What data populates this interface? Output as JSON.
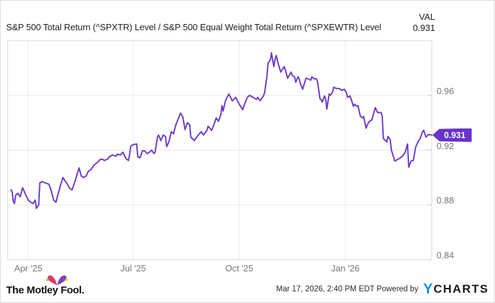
{
  "header": {
    "title": "S&P 500 Total Return (^SPXTR) Level / S&P 500 Equal Weight Total Return (^SPXEWTR) Level",
    "val_label": "VAL",
    "val_value": "0.931"
  },
  "chart_data": {
    "type": "line",
    "title": "S&P 500 Total Return (^SPXTR) Level / S&P 500 Equal Weight Total Return (^SPXEWTR) Level",
    "grid": true,
    "legend_position": "none",
    "y_axis_side": "right",
    "y_range": [
      0.84,
      1.0
    ],
    "y_ticks": [
      "0.96",
      "0.92",
      "0.88",
      "0.84"
    ],
    "x_range": [
      "2025-03-14",
      "2026-03-17"
    ],
    "x_ticks": [
      {
        "date": "2025-04-01",
        "label": "Apr '25"
      },
      {
        "date": "2025-07-01",
        "label": "Jul '25"
      },
      {
        "date": "2025-10-01",
        "label": "Oct '25"
      },
      {
        "date": "2026-01-01",
        "label": "Jan '26"
      }
    ],
    "last_value_label": "0.931",
    "series": [
      {
        "name": "^SPXTR / ^SPXEWTR ratio",
        "color": "#6d3bc7",
        "points": [
          [
            "2025-03-17",
            0.891
          ],
          [
            "2025-03-18",
            0.8895
          ],
          [
            "2025-03-19",
            0.8825
          ],
          [
            "2025-03-20",
            0.881
          ],
          [
            "2025-03-21",
            0.887
          ],
          [
            "2025-03-23",
            0.8885
          ],
          [
            "2025-03-25",
            0.886
          ],
          [
            "2025-03-27",
            0.8925
          ],
          [
            "2025-03-30",
            0.887
          ],
          [
            "2025-04-01",
            0.8835
          ],
          [
            "2025-04-03",
            0.882
          ],
          [
            "2025-04-05",
            0.881
          ],
          [
            "2025-04-07",
            0.8835
          ],
          [
            "2025-04-08",
            0.8775
          ],
          [
            "2025-04-10",
            0.88
          ],
          [
            "2025-04-11",
            0.896
          ],
          [
            "2025-04-13",
            0.897
          ],
          [
            "2025-04-16",
            0.896
          ],
          [
            "2025-04-19",
            0.895
          ],
          [
            "2025-04-21",
            0.89
          ],
          [
            "2025-04-23",
            0.8835
          ],
          [
            "2025-04-25",
            0.882
          ],
          [
            "2025-04-27",
            0.8885
          ],
          [
            "2025-04-29",
            0.8945
          ],
          [
            "2025-05-01",
            0.9
          ],
          [
            "2025-05-03",
            0.8975
          ],
          [
            "2025-05-05",
            0.895
          ],
          [
            "2025-05-07",
            0.892
          ],
          [
            "2025-05-09",
            0.891
          ],
          [
            "2025-05-12",
            0.8985
          ],
          [
            "2025-05-15",
            0.907
          ],
          [
            "2025-05-17",
            0.901
          ],
          [
            "2025-05-19",
            0.9
          ],
          [
            "2025-05-21",
            0.901
          ],
          [
            "2025-05-23",
            0.9045
          ],
          [
            "2025-05-25",
            0.9055
          ],
          [
            "2025-05-28",
            0.909
          ],
          [
            "2025-05-31",
            0.911
          ],
          [
            "2025-06-02",
            0.913
          ],
          [
            "2025-06-04",
            0.9135
          ],
          [
            "2025-06-06",
            0.9125
          ],
          [
            "2025-06-09",
            0.9135
          ],
          [
            "2025-06-10",
            0.915
          ],
          [
            "2025-06-13",
            0.9165
          ],
          [
            "2025-06-16",
            0.9155
          ],
          [
            "2025-06-17",
            0.917
          ],
          [
            "2025-06-20",
            0.9165
          ],
          [
            "2025-06-22",
            0.9185
          ],
          [
            "2025-06-25",
            0.9135
          ],
          [
            "2025-06-27",
            0.9125
          ],
          [
            "2025-06-29",
            0.923
          ],
          [
            "2025-07-01",
            0.924
          ],
          [
            "2025-07-04",
            0.9245
          ],
          [
            "2025-07-05",
            0.915
          ],
          [
            "2025-07-07",
            0.9145
          ],
          [
            "2025-07-09",
            0.9195
          ],
          [
            "2025-07-11",
            0.9195
          ],
          [
            "2025-07-13",
            0.9175
          ],
          [
            "2025-07-15",
            0.9185
          ],
          [
            "2025-07-17",
            0.92
          ],
          [
            "2025-07-19",
            0.9175
          ],
          [
            "2025-07-20",
            0.9185
          ],
          [
            "2025-07-22",
            0.9295
          ],
          [
            "2025-07-23",
            0.931
          ],
          [
            "2025-07-25",
            0.927
          ],
          [
            "2025-07-27",
            0.931
          ],
          [
            "2025-07-29",
            0.93
          ],
          [
            "2025-07-30",
            0.9225
          ],
          [
            "2025-08-01",
            0.926
          ],
          [
            "2025-08-03",
            0.9335
          ],
          [
            "2025-08-05",
            0.932
          ],
          [
            "2025-08-07",
            0.9385
          ],
          [
            "2025-08-09",
            0.9425
          ],
          [
            "2025-08-11",
            0.947
          ],
          [
            "2025-08-13",
            0.9445
          ],
          [
            "2025-08-15",
            0.935
          ],
          [
            "2025-08-17",
            0.94
          ],
          [
            "2025-08-19",
            0.9385
          ],
          [
            "2025-08-20",
            0.9295
          ],
          [
            "2025-08-23",
            0.927
          ],
          [
            "2025-08-26",
            0.9305
          ],
          [
            "2025-08-29",
            0.9335
          ],
          [
            "2025-08-31",
            0.931
          ],
          [
            "2025-09-03",
            0.9345
          ],
          [
            "2025-09-04",
            0.9375
          ],
          [
            "2025-09-07",
            0.9345
          ],
          [
            "2025-09-09",
            0.9385
          ],
          [
            "2025-09-11",
            0.9435
          ],
          [
            "2025-09-13",
            0.941
          ],
          [
            "2025-09-15",
            0.946
          ],
          [
            "2025-09-16",
            0.9525
          ],
          [
            "2025-09-17",
            0.9485
          ],
          [
            "2025-09-19",
            0.956
          ],
          [
            "2025-09-22",
            0.961
          ],
          [
            "2025-09-25",
            0.956
          ],
          [
            "2025-09-28",
            0.9585
          ],
          [
            "2025-10-01",
            0.9535
          ],
          [
            "2025-10-04",
            0.9495
          ],
          [
            "2025-10-06",
            0.9545
          ],
          [
            "2025-10-08",
            0.9585
          ],
          [
            "2025-10-10",
            0.96
          ],
          [
            "2025-10-13",
            0.9585
          ],
          [
            "2025-10-16",
            0.957
          ],
          [
            "2025-10-17",
            0.9585
          ],
          [
            "2025-10-19",
            0.956
          ],
          [
            "2025-10-22",
            0.9595
          ],
          [
            "2025-10-23",
            0.962
          ],
          [
            "2025-10-25",
            0.9735
          ],
          [
            "2025-10-26",
            0.9835
          ],
          [
            "2025-10-28",
            0.986
          ],
          [
            "2025-10-29",
            0.991
          ],
          [
            "2025-10-31",
            0.981
          ],
          [
            "2025-11-01",
            0.986
          ],
          [
            "2025-11-02",
            0.989
          ],
          [
            "2025-11-04",
            0.9825
          ],
          [
            "2025-11-06",
            0.977
          ],
          [
            "2025-11-09",
            0.981
          ],
          [
            "2025-11-10",
            0.9785
          ],
          [
            "2025-11-12",
            0.9725
          ],
          [
            "2025-11-15",
            0.977
          ],
          [
            "2025-11-16",
            0.9745
          ],
          [
            "2025-11-18",
            0.9735
          ],
          [
            "2025-11-19",
            0.9695
          ],
          [
            "2025-11-21",
            0.9735
          ],
          [
            "2025-11-22",
            0.972
          ],
          [
            "2025-11-23",
            0.9685
          ],
          [
            "2025-11-25",
            0.9645
          ],
          [
            "2025-11-27",
            0.97
          ],
          [
            "2025-11-28",
            0.9725
          ],
          [
            "2025-11-30",
            0.972
          ],
          [
            "2025-12-02",
            0.971
          ],
          [
            "2025-12-03",
            0.9735
          ],
          [
            "2025-12-05",
            0.972
          ],
          [
            "2025-12-07",
            0.972
          ],
          [
            "2025-12-08",
            0.9695
          ],
          [
            "2025-12-10",
            0.9575
          ],
          [
            "2025-12-11",
            0.957
          ],
          [
            "2025-12-12",
            0.955
          ],
          [
            "2025-12-14",
            0.9595
          ],
          [
            "2025-12-15",
            0.957
          ],
          [
            "2025-12-16",
            0.95
          ],
          [
            "2025-12-18",
            0.961
          ],
          [
            "2025-12-19",
            0.96
          ],
          [
            "2025-12-21",
            0.9625
          ],
          [
            "2025-12-22",
            0.966
          ],
          [
            "2025-12-24",
            0.965
          ],
          [
            "2025-12-26",
            0.965
          ],
          [
            "2025-12-28",
            0.9645
          ],
          [
            "2025-12-29",
            0.9635
          ],
          [
            "2025-12-31",
            0.9645
          ],
          [
            "2026-01-02",
            0.962
          ],
          [
            "2026-01-03",
            0.9585
          ],
          [
            "2026-01-05",
            0.9595
          ],
          [
            "2026-01-06",
            0.9575
          ],
          [
            "2026-01-08",
            0.952
          ],
          [
            "2026-01-09",
            0.9535
          ],
          [
            "2026-01-11",
            0.952
          ],
          [
            "2026-01-12",
            0.9525
          ],
          [
            "2026-01-14",
            0.945
          ],
          [
            "2026-01-16",
            0.9435
          ],
          [
            "2026-01-17",
            0.9445
          ],
          [
            "2026-01-19",
            0.936
          ],
          [
            "2026-01-21",
            0.94
          ],
          [
            "2026-01-22",
            0.941
          ],
          [
            "2026-01-24",
            0.942
          ],
          [
            "2026-01-27",
            0.951
          ],
          [
            "2026-01-29",
            0.9475
          ],
          [
            "2026-02-01",
            0.9475
          ],
          [
            "2026-02-02",
            0.945
          ],
          [
            "2026-02-03",
            0.9285
          ],
          [
            "2026-02-06",
            0.926
          ],
          [
            "2026-02-07",
            0.93
          ],
          [
            "2026-02-09",
            0.9275
          ],
          [
            "2026-02-10",
            0.92
          ],
          [
            "2026-02-13",
            0.912
          ],
          [
            "2026-02-14",
            0.9125
          ],
          [
            "2026-02-16",
            0.9135
          ],
          [
            "2026-02-18",
            0.9145
          ],
          [
            "2026-02-20",
            0.916
          ],
          [
            "2026-02-22",
            0.9185
          ],
          [
            "2026-02-24",
            0.9245
          ],
          [
            "2026-02-25",
            0.9075
          ],
          [
            "2026-02-27",
            0.912
          ],
          [
            "2026-03-01",
            0.9125
          ],
          [
            "2026-03-03",
            0.922
          ],
          [
            "2026-03-05",
            0.926
          ],
          [
            "2026-03-07",
            0.9285
          ],
          [
            "2026-03-09",
            0.9335
          ],
          [
            "2026-03-10",
            0.9345
          ],
          [
            "2026-03-12",
            0.9295
          ],
          [
            "2026-03-14",
            0.9315
          ],
          [
            "2026-03-17",
            0.931
          ]
        ]
      }
    ]
  },
  "footer": {
    "brand": "The Motley Fool.",
    "timestamp_powered": "Mar 17, 2026, 2:40 PM EDT Powered by",
    "ycharts_y": "Y",
    "ycharts_rest": "CHARTS"
  },
  "colors": {
    "line": "#6d3bc7",
    "tag_background": "#6733c9",
    "grid": "#e8e8e8",
    "plot_border": "#d9d9d9",
    "tick": "#c9c9c9",
    "axis_label": "#757575",
    "ycharts_blue": "#1d8de8",
    "motley_pink": "#e0366e",
    "motley_purple": "#7b3fc1"
  }
}
